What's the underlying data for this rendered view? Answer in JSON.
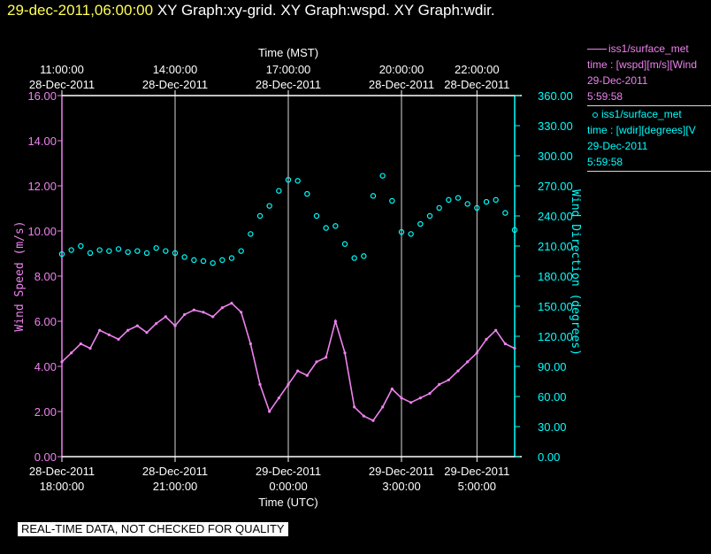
{
  "header": {
    "timestamp": "29-dec-2011,06:00:00",
    "graphs_label": "XY Graph:xy-grid.  XY Graph:wspd.  XY Graph:wdir."
  },
  "legend": [
    {
      "title": "iss1/surface_met",
      "line1": "time : [wspd][m/s][Wind",
      "line2": "29-Dec-2011",
      "line3": "5:59:58",
      "color": "#ee82ee",
      "marker": "line"
    },
    {
      "title": "iss1/surface_met",
      "line1": "time : [wdir][degrees][V",
      "line2": "29-Dec-2011",
      "line3": "5:59:58",
      "color": "#00ffff",
      "marker": "circle"
    }
  ],
  "disclaimer": "REAL-TIME DATA, NOT CHECKED FOR QUALITY",
  "chart_data": {
    "type": "line",
    "title": "",
    "xlabel_top": "Time (MST)",
    "xlabel_bottom": "Time (UTC)",
    "ylabel_left": "Wind Speed (m/s)",
    "ylabel_right": "Wind Direction (degrees)",
    "grid": true,
    "xlim": [
      "28-Dec-2011 18:00:00",
      "29-Dec-2011 06:00:00"
    ],
    "ylim_left": [
      0,
      16
    ],
    "ylim_right": [
      0,
      360
    ],
    "left_ticks": [
      "0.00",
      "2.00",
      "4.00",
      "6.00",
      "8.00",
      "10.00",
      "12.00",
      "14.00",
      "16.00"
    ],
    "right_ticks": [
      "0.00",
      "30.00",
      "60.00",
      "90.00",
      "120.00",
      "150.00",
      "180.00",
      "210.00",
      "240.00",
      "270.00",
      "300.00",
      "330.00",
      "360.00"
    ],
    "bottom_ticks": [
      {
        "hours": 0,
        "date": "28-Dec-2011",
        "time": "18:00:00"
      },
      {
        "hours": 3,
        "date": "28-Dec-2011",
        "time": "21:00:00"
      },
      {
        "hours": 6,
        "date": "29-Dec-2011",
        "time": "0:00:00"
      },
      {
        "hours": 9,
        "date": "29-Dec-2011",
        "time": "3:00:00"
      },
      {
        "hours": 11,
        "date": "29-Dec-2011",
        "time": "5:00:00"
      }
    ],
    "top_ticks": [
      {
        "hours": 0,
        "time": "11:00:00",
        "date": "28-Dec-2011"
      },
      {
        "hours": 3,
        "time": "14:00:00",
        "date": "28-Dec-2011"
      },
      {
        "hours": 6,
        "time": "17:00:00",
        "date": "28-Dec-2011"
      },
      {
        "hours": 9,
        "time": "20:00:00",
        "date": "28-Dec-2011"
      },
      {
        "hours": 11,
        "time": "22:00:00",
        "date": "28-Dec-2011"
      }
    ],
    "series": [
      {
        "name": "iss1/surface_met time : [wspd][m/s]",
        "axis": "left",
        "style": "line",
        "color": "#ee82ee",
        "x_hours": [
          0,
          0.25,
          0.5,
          0.75,
          1,
          1.25,
          1.5,
          1.75,
          2,
          2.25,
          2.5,
          2.75,
          3,
          3.25,
          3.5,
          3.75,
          4,
          4.25,
          4.5,
          4.75,
          5,
          5.25,
          5.5,
          5.75,
          6,
          6.25,
          6.5,
          6.75,
          7,
          7.25,
          7.5,
          7.75,
          8,
          8.25,
          8.5,
          8.75,
          9,
          9.25,
          9.5,
          9.75,
          10,
          10.25,
          10.5,
          10.75,
          11,
          11.25,
          11.5,
          11.75,
          12
        ],
        "values": [
          4.2,
          4.6,
          5.0,
          4.8,
          5.6,
          5.4,
          5.2,
          5.6,
          5.8,
          5.5,
          5.9,
          6.2,
          5.8,
          6.3,
          6.5,
          6.4,
          6.2,
          6.6,
          6.8,
          6.4,
          5.0,
          3.2,
          2.0,
          2.6,
          3.2,
          3.8,
          3.6,
          4.2,
          4.4,
          6.0,
          4.6,
          2.2,
          1.8,
          1.6,
          2.2,
          3.0,
          2.6,
          2.4,
          2.6,
          2.8,
          3.2,
          3.4,
          3.8,
          4.2,
          4.6,
          5.2,
          5.6,
          5.0,
          4.8
        ]
      },
      {
        "name": "iss1/surface_met time : [wdir][degrees]",
        "axis": "right",
        "style": "circles",
        "color": "#00ffff",
        "x_hours": [
          0,
          0.25,
          0.5,
          0.75,
          1,
          1.25,
          1.5,
          1.75,
          2,
          2.25,
          2.5,
          2.75,
          3,
          3.25,
          3.5,
          3.75,
          4,
          4.25,
          4.5,
          4.75,
          5,
          5.25,
          5.5,
          5.75,
          6,
          6.25,
          6.5,
          6.75,
          7,
          7.25,
          7.5,
          7.75,
          8,
          8.25,
          8.5,
          8.75,
          9,
          9.25,
          9.5,
          9.75,
          10,
          10.25,
          10.5,
          10.75,
          11,
          11.25,
          11.5,
          11.75,
          12
        ],
        "values": [
          202,
          206,
          210,
          203,
          206,
          205,
          207,
          204,
          205,
          203,
          208,
          205,
          203,
          199,
          196,
          195,
          193,
          196,
          198,
          205,
          222,
          240,
          250,
          265,
          276,
          275,
          262,
          240,
          228,
          230,
          212,
          198,
          200,
          260,
          280,
          255,
          224,
          222,
          232,
          240,
          248,
          256,
          258,
          252,
          248,
          254,
          256,
          243,
          226
        ]
      }
    ]
  }
}
